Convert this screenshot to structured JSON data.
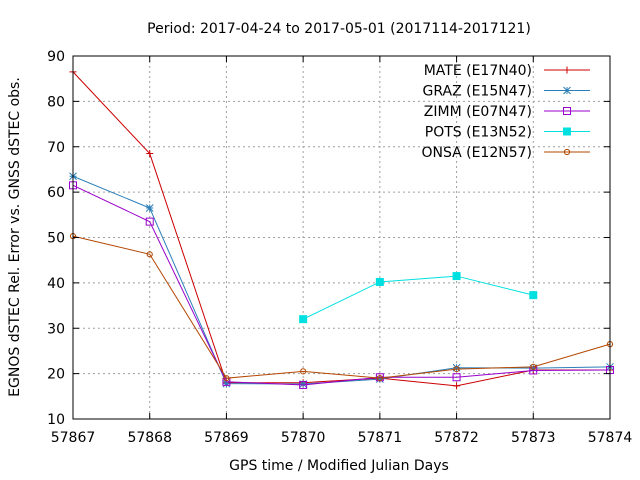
{
  "chart_data": {
    "type": "line",
    "title": "Period: 2017-04-24 to 2017-05-01 (2017114-2017121)",
    "xlabel": "GPS time / Modified Julian Days",
    "ylabel": "EGNOS dSTEC Rel. Error vs. GNSS dSTEC obs.",
    "xlim": [
      57867,
      57874
    ],
    "ylim": [
      10,
      90
    ],
    "xticks": [
      57867,
      57868,
      57869,
      57870,
      57871,
      57872,
      57873,
      57874
    ],
    "yticks": [
      10,
      20,
      30,
      40,
      50,
      60,
      70,
      80,
      90
    ],
    "grid": true,
    "legend_position": "top-right",
    "series": [
      {
        "name": "MATE (E17N40)",
        "color": "#cc0000",
        "marker": "plus",
        "x": [
          57867,
          57868,
          57869,
          57870,
          57871,
          57872,
          57873,
          57874
        ],
        "y": [
          86.5,
          68.5,
          18.0,
          18.0,
          19.0,
          17.3,
          20.8,
          20.8
        ]
      },
      {
        "name": "GRAZ (E15N47)",
        "color": "#2c7fb8",
        "marker": "star",
        "x": [
          57867,
          57868,
          57869,
          57870,
          57871,
          57872,
          57873,
          57874
        ],
        "y": [
          63.5,
          56.5,
          17.8,
          17.7,
          18.8,
          21.3,
          21.2,
          21.5
        ]
      },
      {
        "name": "ZIMM (E07N47)",
        "color": "#9900cc",
        "marker": "square-open",
        "x": [
          57867,
          57868,
          57869,
          57870,
          57871,
          57872,
          57873,
          57874
        ],
        "y": [
          61.5,
          53.5,
          18.2,
          17.5,
          19.2,
          19.2,
          20.7,
          20.8
        ]
      },
      {
        "name": "POTS (E13N52)",
        "color": "#00e0e0",
        "marker": "square-filled",
        "x": [
          57870,
          57871,
          57872,
          57873
        ],
        "y": [
          32.0,
          40.2,
          41.5,
          37.3
        ]
      },
      {
        "name": "ONSA (E12N57)",
        "color": "#b34700",
        "marker": "circle-open",
        "x": [
          57867,
          57868,
          57869,
          57870,
          57871,
          57872,
          57873,
          57874
        ],
        "y": [
          50.3,
          46.3,
          19.0,
          20.5,
          19.0,
          21.0,
          21.5,
          26.5
        ]
      }
    ]
  }
}
